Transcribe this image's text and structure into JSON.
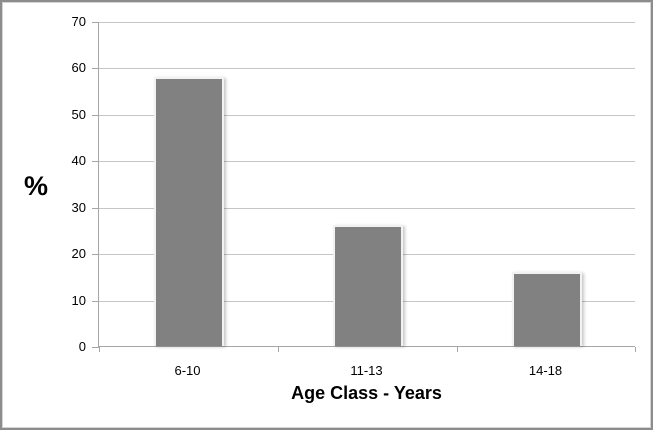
{
  "chart_data": {
    "type": "bar",
    "categories": [
      "6-10",
      "11-13",
      "14-18"
    ],
    "values": [
      58,
      26,
      16
    ],
    "title": "",
    "xlabel": "Age Class - Years",
    "ylabel": "%",
    "ylim": [
      0,
      70
    ],
    "yticks": [
      0,
      10,
      20,
      30,
      40,
      50,
      60,
      70
    ],
    "grid": true,
    "legend": "none",
    "colors": {
      "bar_fill": "#818181",
      "bar_edge": "#f2f2f2",
      "gridline": "#c6c6c6",
      "axis_line": "#a6a6a6",
      "text": "#000000",
      "frame_border": "#8c8c8c",
      "background": "#ffffff"
    }
  }
}
